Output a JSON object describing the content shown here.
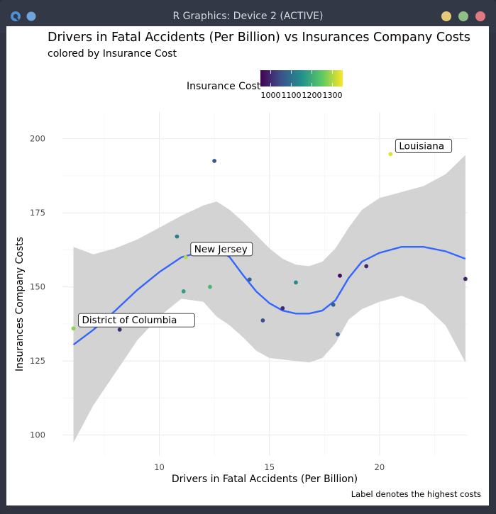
{
  "window": {
    "title": "R Graphics: Device 2 (ACTIVE)",
    "icons": [
      "app-menu-icon",
      "pin-icon"
    ],
    "controls": [
      {
        "name": "minimize-button",
        "color": "#e6c97a"
      },
      {
        "name": "maximize-button",
        "color": "#8fbf86"
      },
      {
        "name": "close-button",
        "color": "#e07a82"
      }
    ]
  },
  "chart_data": {
    "type": "scatter",
    "title": "Drivers in Fatal Accidents (Per Billion) vs Insurances Company Costs",
    "subtitle": "colored by Insurance Cost",
    "xlabel": "Drivers in Fatal Accidents (Per Billion)",
    "ylabel": "Insurances Company Costs",
    "caption": "Label denotes the highest costs",
    "xlim": [
      5.6,
      24.0
    ],
    "ylim": [
      93,
      209
    ],
    "xticks": [
      10,
      15,
      20
    ],
    "yticks": [
      100,
      125,
      150,
      175,
      200
    ],
    "grid": true,
    "legend": {
      "title": "Insurance Cost",
      "position": "top",
      "ticks": [
        1000,
        1100,
        1200,
        1300
      ],
      "range": [
        950,
        1350
      ],
      "colors": [
        "#440154",
        "#3b528b",
        "#21908d",
        "#5dc963",
        "#fde725"
      ]
    },
    "points": [
      {
        "x": 6.1,
        "y": 136,
        "cost": 1280,
        "label": "District of Columbia"
      },
      {
        "x": 8.2,
        "y": 135.6,
        "cost": 1000
      },
      {
        "x": 10.8,
        "y": 167,
        "cost": 1120
      },
      {
        "x": 11.1,
        "y": 148.5,
        "cost": 1175
      },
      {
        "x": 11.2,
        "y": 160,
        "cost": 1310,
        "label": "New Jersey"
      },
      {
        "x": 12.3,
        "y": 150,
        "cost": 1220
      },
      {
        "x": 12.5,
        "y": 192.5,
        "cost": 1060
      },
      {
        "x": 14.1,
        "y": 152.5,
        "cost": 1080
      },
      {
        "x": 14.7,
        "y": 138.7,
        "cost": 1050
      },
      {
        "x": 15.6,
        "y": 142.8,
        "cost": 1000
      },
      {
        "x": 16.2,
        "y": 151.5,
        "cost": 1140
      },
      {
        "x": 17.9,
        "y": 144,
        "cost": 1070
      },
      {
        "x": 18.1,
        "y": 134,
        "cost": 1060
      },
      {
        "x": 18.2,
        "y": 153.8,
        "cost": 960
      },
      {
        "x": 19.4,
        "y": 157,
        "cost": 1000
      },
      {
        "x": 20.5,
        "y": 194.8,
        "cost": 1330,
        "label": "Louisiana"
      },
      {
        "x": 23.9,
        "y": 152.7,
        "cost": 990
      }
    ],
    "smooth": {
      "x": [
        6.1,
        7.0,
        8.0,
        9.0,
        10.0,
        11.0,
        12.0,
        12.6,
        13.2,
        13.8,
        14.4,
        15.0,
        15.6,
        16.2,
        16.8,
        17.4,
        18.0,
        18.6,
        19.2,
        20.0,
        21.0,
        22.0,
        23.0,
        23.9
      ],
      "y": [
        130.5,
        135.5,
        142,
        149,
        155,
        160,
        162,
        163,
        160,
        154,
        148.5,
        144.5,
        142,
        141,
        141,
        142,
        145.5,
        153,
        158.5,
        161.5,
        163.5,
        163.5,
        162,
        159.5
      ],
      "lower": [
        97.5,
        110,
        121,
        132,
        140,
        146,
        145,
        140,
        137,
        133,
        128.5,
        126,
        125.5,
        125,
        124.5,
        126,
        131,
        139,
        142.5,
        145,
        147,
        144,
        137,
        124.5
      ],
      "upper": [
        163.5,
        161,
        163,
        166,
        170,
        174,
        177.5,
        178.8,
        176,
        172,
        167.5,
        163,
        159.5,
        157.5,
        157,
        158.5,
        163,
        170,
        176,
        180,
        182,
        184,
        188,
        194.5
      ]
    }
  }
}
